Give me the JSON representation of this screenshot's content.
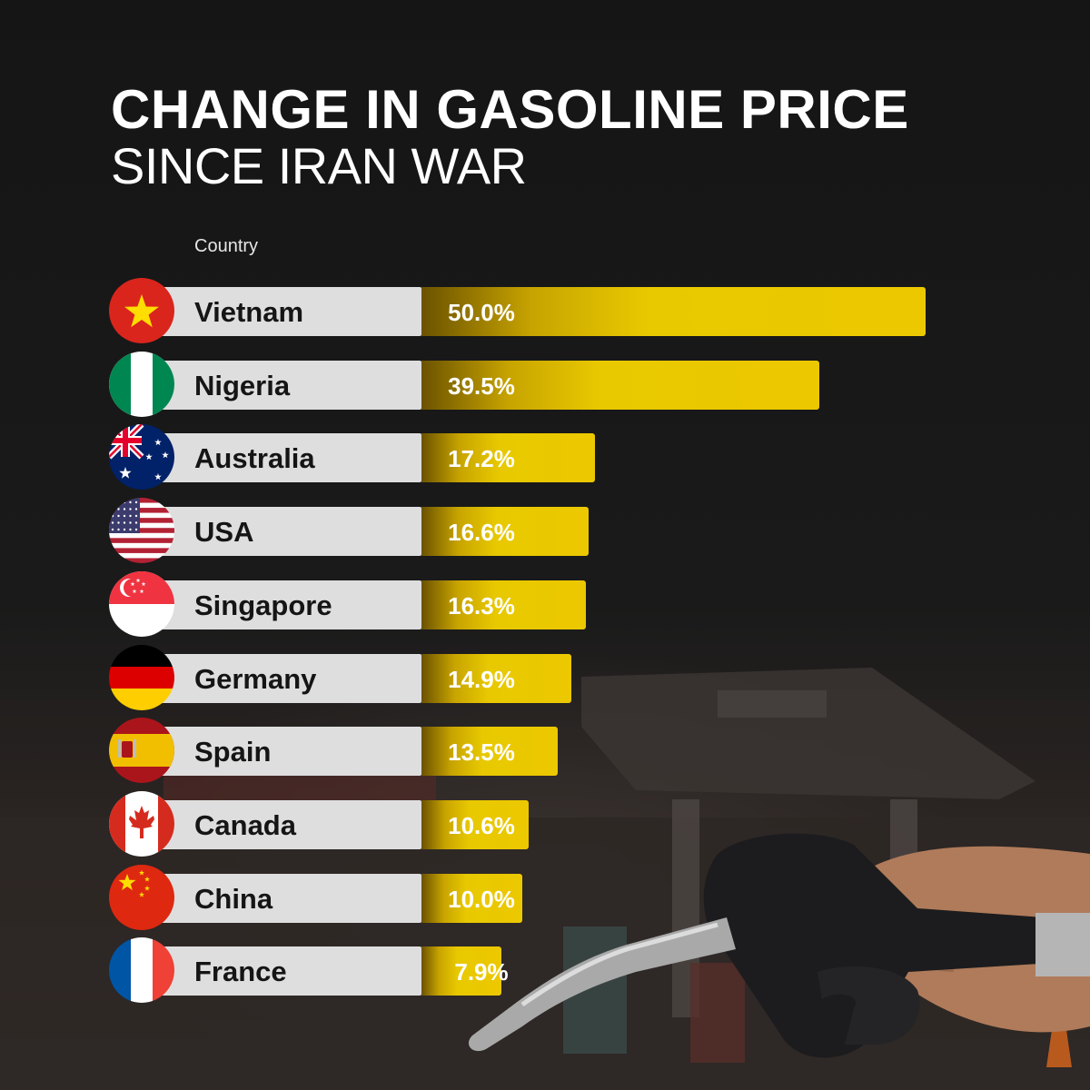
{
  "title_line1": "CHANGE IN GASOLINE PRICE",
  "title_line2": "SINCE IRAN WAR",
  "column_header": "Country",
  "chart_data": {
    "type": "bar",
    "orientation": "horizontal",
    "title": "CHANGE IN GASOLINE PRICE SINCE IRAN WAR",
    "categories": [
      "Vietnam",
      "Nigeria",
      "Australia",
      "USA",
      "Singapore",
      "Germany",
      "Spain",
      "Canada",
      "China",
      "France"
    ],
    "values": [
      50.0,
      39.5,
      17.2,
      16.6,
      16.3,
      14.9,
      13.5,
      10.6,
      10.0,
      7.9
    ],
    "value_labels": [
      "50.0%",
      "39.5%",
      "17.2%",
      "16.6%",
      "16.3%",
      "14.9%",
      "13.5%",
      "10.6%",
      "10.0%",
      "7.9%"
    ],
    "flags": [
      "vietnam-flag-icon",
      "nigeria-flag-icon",
      "australia-flag-icon",
      "usa-flag-icon",
      "singapore-flag-icon",
      "germany-flag-icon",
      "spain-flag-icon",
      "canada-flag-icon",
      "china-flag-icon",
      "france-flag-icon"
    ],
    "xlim": [
      0,
      50
    ],
    "bar_color": "#ecc800",
    "label_background": "#dedede",
    "grid": false
  },
  "colors": {
    "background": "#141414",
    "text": "#ffffff",
    "bar": "#ecc800"
  }
}
